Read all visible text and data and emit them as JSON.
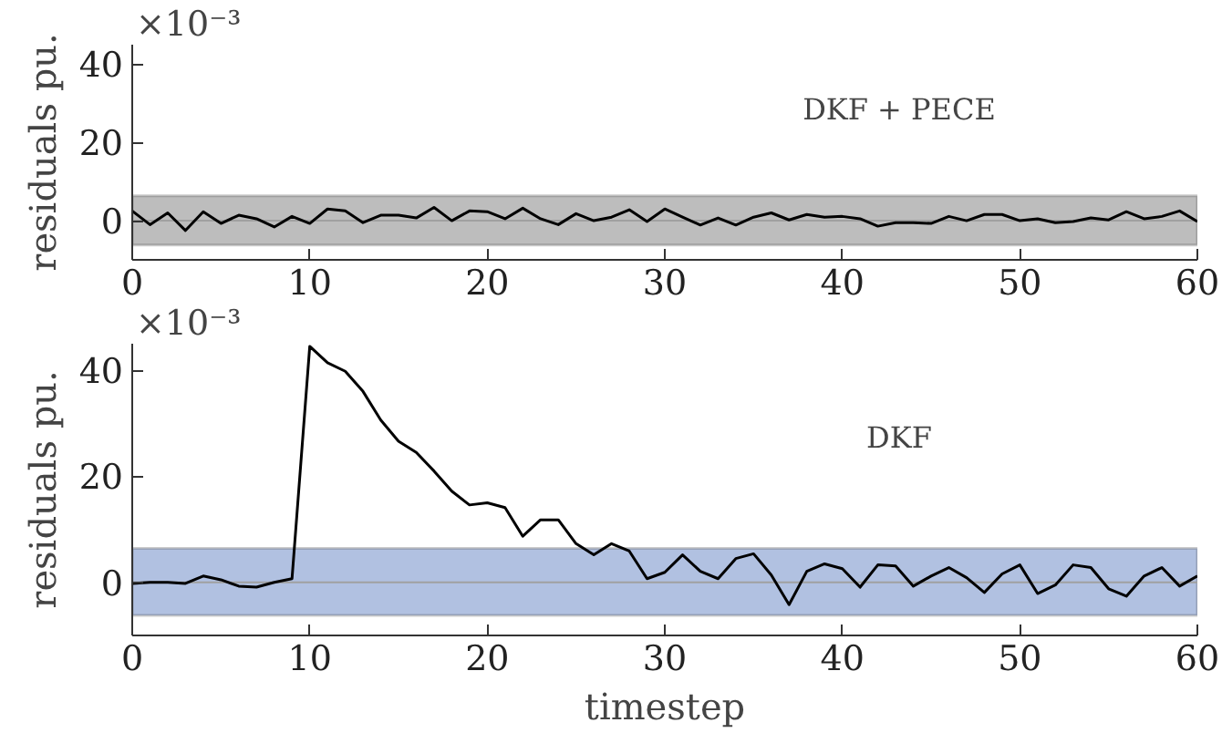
{
  "chart_data": [
    {
      "type": "line",
      "x": [
        0,
        1,
        2,
        3,
        4,
        5,
        6,
        7,
        8,
        9,
        10,
        11,
        12,
        13,
        14,
        15,
        16,
        17,
        18,
        19,
        20,
        21,
        22,
        23,
        24,
        25,
        26,
        27,
        28,
        29,
        30,
        31,
        32,
        33,
        34,
        35,
        36,
        37,
        38,
        39,
        40,
        41,
        42,
        43,
        44,
        45,
        46,
        47,
        48,
        49,
        50,
        51,
        52,
        53,
        54,
        55,
        56,
        57,
        58,
        59,
        60
      ],
      "series": [
        {
          "color": "#000000",
          "values": [
            2.5,
            -1,
            2,
            -2.5,
            2.3,
            -0.7,
            1.4,
            0.5,
            -1.6,
            1.1,
            -0.7,
            3,
            2.5,
            -0.5,
            1.4,
            1.4,
            0.7,
            3.4,
            0,
            2.5,
            2.3,
            0.5,
            3.2,
            0.5,
            -1,
            1.8,
            0,
            0.9,
            2.8,
            -0.2,
            3,
            0.9,
            -1.1,
            0.7,
            -1.1,
            0.9,
            2,
            0.2,
            1.6,
            0.9,
            1.1,
            0.5,
            -1.4,
            -0.5,
            -0.5,
            -0.7,
            1.1,
            0,
            1.6,
            1.6,
            0,
            0.5,
            -0.5,
            -0.2,
            0.7,
            0.2,
            2.3,
            0.5,
            1.1,
            2.5,
            -0.2
          ]
        }
      ],
      "ylabel": "residuals pu.",
      "xlim": [
        0,
        60
      ],
      "xticks": [
        0,
        10,
        20,
        30,
        40,
        50,
        60
      ],
      "ylim": [
        -10,
        45
      ],
      "yticks": [
        0,
        20,
        40
      ],
      "bands": [
        {
          "axis": "y",
          "from": -6.2,
          "to": 6.4,
          "color": "#bdbdbd"
        }
      ],
      "ref_lines": [
        {
          "axis": "y",
          "value": 0,
          "color": "#a0a0a0"
        }
      ],
      "annotations": [
        "×10⁻³",
        "DKF + PECE"
      ],
      "grid": false
    },
    {
      "type": "line",
      "x": [
        0,
        1,
        2,
        3,
        4,
        5,
        6,
        7,
        8,
        9,
        10,
        11,
        12,
        13,
        14,
        15,
        16,
        17,
        18,
        19,
        20,
        21,
        22,
        23,
        24,
        25,
        26,
        27,
        28,
        29,
        30,
        31,
        32,
        33,
        34,
        35,
        36,
        37,
        38,
        39,
        40,
        41,
        42,
        43,
        44,
        45,
        46,
        47,
        48,
        49,
        50,
        51,
        52,
        53,
        54,
        55,
        56,
        57,
        58,
        59,
        60
      ],
      "series": [
        {
          "color": "#000000",
          "values": [
            -0.2,
            0,
            0,
            -0.2,
            1.2,
            0.5,
            -0.7,
            -0.9,
            0,
            0.7,
            44.5,
            41.4,
            39.8,
            36,
            30.6,
            26.6,
            24.5,
            21,
            17.2,
            14.6,
            15,
            14.1,
            8.7,
            11.8,
            11.8,
            7.3,
            5.2,
            7.3,
            5.9,
            0.7,
            1.9,
            5.2,
            2.1,
            0.7,
            4.5,
            5.4,
            1.4,
            -4.2,
            2.1,
            3.5,
            2.6,
            -0.9,
            3.3,
            3.1,
            -0.7,
            1.2,
            2.8,
            0.9,
            -1.9,
            1.6,
            3.3,
            -2.1,
            -0.5,
            3.3,
            2.8,
            -1.2,
            -2.6,
            1.2,
            2.8,
            -0.7,
            1.2
          ]
        }
      ],
      "xlabel": "timestep",
      "ylabel": "residuals pu.",
      "xlim": [
        0,
        60
      ],
      "xticks": [
        0,
        10,
        20,
        30,
        40,
        50,
        60
      ],
      "ylim": [
        -10,
        45
      ],
      "yticks": [
        0,
        20,
        40
      ],
      "bands": [
        {
          "axis": "y",
          "from": -6.2,
          "to": 6.4,
          "color": "#b1c1e1"
        }
      ],
      "ref_lines": [
        {
          "axis": "y",
          "value": 0,
          "color": "#a0a0a0"
        }
      ],
      "annotations": [
        "×10⁻³",
        "DKF"
      ],
      "grid": false
    }
  ]
}
